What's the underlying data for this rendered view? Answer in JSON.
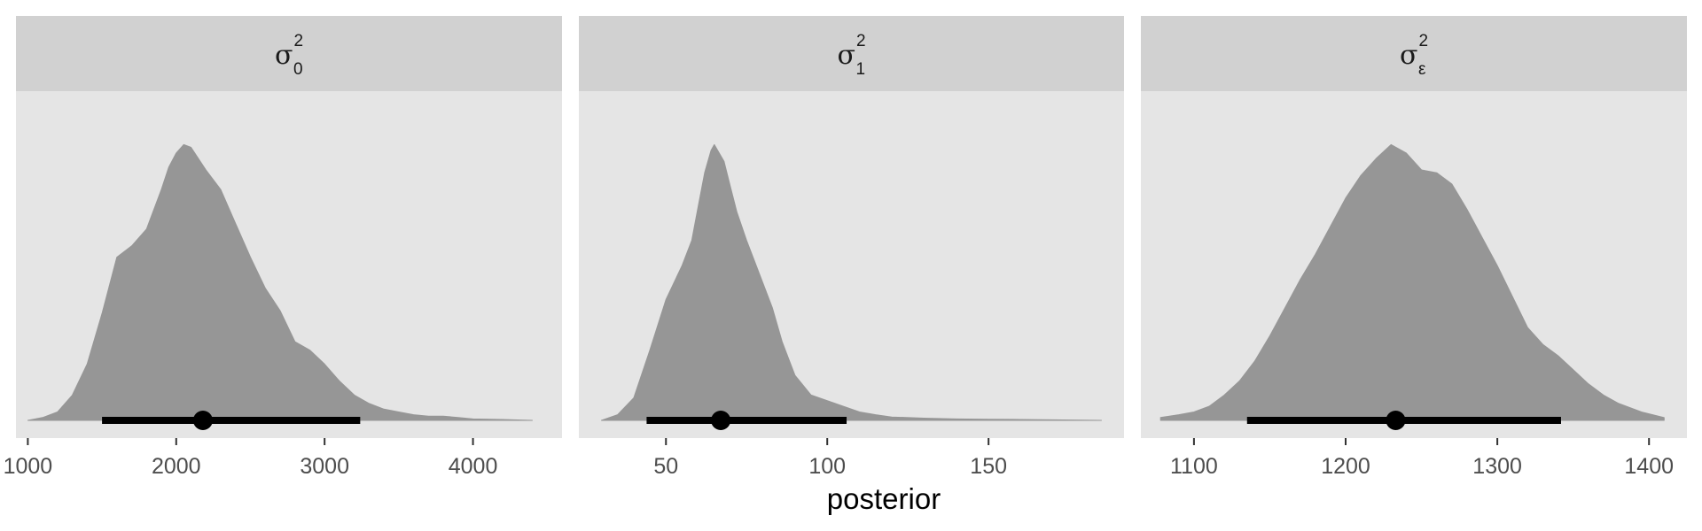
{
  "chart_data": {
    "type": "area",
    "xlabel": "posterior",
    "ylabel": "",
    "title": "",
    "grid": false,
    "colors": {
      "density": "#969696",
      "panel": "#e5e5e5",
      "strip": "#d1d1d1",
      "interval": "#000000"
    },
    "panels": [
      {
        "strip": {
          "base": "σ",
          "sup": "2",
          "sub": "0"
        },
        "xlim": [
          920,
          4600
        ],
        "ticks": [
          1000,
          2000,
          3000,
          4000
        ],
        "tick_labels": [
          "1000",
          "2000",
          "3000",
          "4000"
        ],
        "interval": {
          "low": 1500,
          "high": 3240,
          "point": 2180
        },
        "density": {
          "x": [
            1000,
            1100,
            1200,
            1300,
            1400,
            1500,
            1600,
            1700,
            1800,
            1900,
            1950,
            2000,
            2050,
            2100,
            2150,
            2200,
            2300,
            2400,
            2500,
            2600,
            2700,
            2800,
            2900,
            3000,
            3100,
            3200,
            3300,
            3400,
            3500,
            3600,
            3700,
            3800,
            3900,
            4000,
            4200,
            4400
          ],
          "y": [
            0,
            0.01,
            0.03,
            0.09,
            0.2,
            0.38,
            0.58,
            0.62,
            0.68,
            0.82,
            0.9,
            0.95,
            0.98,
            0.97,
            0.93,
            0.89,
            0.82,
            0.7,
            0.58,
            0.47,
            0.39,
            0.28,
            0.25,
            0.2,
            0.14,
            0.09,
            0.06,
            0.04,
            0.03,
            0.02,
            0.015,
            0.015,
            0.01,
            0.005,
            0.003,
            0.0
          ]
        }
      },
      {
        "strip": {
          "base": "σ",
          "sup": "2",
          "sub": "1"
        },
        "xlim": [
          23,
          192
        ],
        "ticks": [
          50,
          100,
          150
        ],
        "tick_labels": [
          "50",
          "100",
          "150"
        ],
        "interval": {
          "low": 44,
          "high": 106,
          "point": 67
        },
        "density": {
          "x": [
            30,
            35,
            40,
            45,
            50,
            55,
            58,
            60,
            62,
            64,
            65,
            66,
            68,
            70,
            72,
            75,
            78,
            80,
            83,
            86,
            90,
            95,
            100,
            105,
            110,
            115,
            120,
            130,
            140,
            150,
            160,
            170,
            185
          ],
          "y": [
            0,
            0.02,
            0.08,
            0.25,
            0.43,
            0.55,
            0.64,
            0.76,
            0.88,
            0.96,
            0.98,
            0.96,
            0.92,
            0.83,
            0.74,
            0.64,
            0.55,
            0.49,
            0.4,
            0.28,
            0.16,
            0.09,
            0.07,
            0.05,
            0.03,
            0.02,
            0.012,
            0.008,
            0.005,
            0.004,
            0.003,
            0.002,
            0.0
          ]
        }
      },
      {
        "strip": {
          "base": "σ",
          "sup": "2",
          "sub": "ε"
        },
        "xlim": [
          1065,
          1425
        ],
        "ticks": [
          1100,
          1200,
          1300,
          1400
        ],
        "tick_labels": [
          "1100",
          "1200",
          "1300",
          "1400"
        ],
        "interval": {
          "low": 1135,
          "high": 1342,
          "point": 1233
        },
        "density": {
          "x": [
            1078,
            1090,
            1100,
            1110,
            1120,
            1130,
            1140,
            1150,
            1160,
            1170,
            1180,
            1190,
            1200,
            1210,
            1220,
            1230,
            1240,
            1250,
            1260,
            1270,
            1280,
            1290,
            1300,
            1310,
            1320,
            1330,
            1340,
            1350,
            1360,
            1370,
            1380,
            1395,
            1410
          ],
          "y": [
            0.01,
            0.02,
            0.03,
            0.05,
            0.09,
            0.14,
            0.21,
            0.3,
            0.4,
            0.5,
            0.59,
            0.69,
            0.79,
            0.87,
            0.93,
            0.98,
            0.95,
            0.89,
            0.88,
            0.84,
            0.75,
            0.65,
            0.55,
            0.44,
            0.33,
            0.27,
            0.23,
            0.18,
            0.13,
            0.09,
            0.06,
            0.03,
            0.01
          ]
        }
      }
    ]
  }
}
